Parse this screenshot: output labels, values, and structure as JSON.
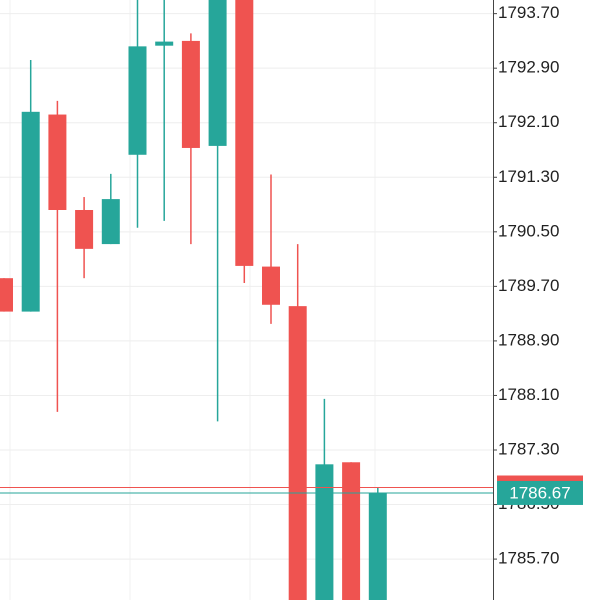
{
  "chart_data": {
    "type": "candlestick",
    "up_color": "#26a69a",
    "down_color": "#ef5350",
    "open": [
      1789.82,
      1789.33,
      1792.22,
      1790.82,
      1790.32,
      1791.63,
      1793.23,
      1793.3,
      1791.76,
      1794.1,
      1789.99,
      1789.41,
      1784.9,
      1787.12,
      1784.9
    ],
    "high": [
      1789.82,
      1793.02,
      1792.42,
      1791.01,
      1791.35,
      1794.1,
      1794.1,
      1793.41,
      1794.1,
      1794.1,
      1791.34,
      1790.32,
      1788.05,
      1787.12,
      1786.75
    ],
    "low": [
      1789.33,
      1789.33,
      1787.86,
      1789.82,
      1790.32,
      1790.56,
      1790.66,
      1790.32,
      1787.72,
      1789.75,
      1789.15,
      1784.9,
      1784.9,
      1784.9,
      1784.9
    ],
    "close": [
      1789.33,
      1792.26,
      1790.82,
      1790.25,
      1790.98,
      1793.22,
      1793.29,
      1791.73,
      1794.1,
      1790.0,
      1789.43,
      1784.9,
      1787.09,
      1784.9,
      1786.67
    ],
    "ylim": [
      1785.1,
      1793.9
    ],
    "yticks": [
      {
        "value": 1793.7,
        "label": "1793.70"
      },
      {
        "value": 1792.9,
        "label": "1792.90"
      },
      {
        "value": 1792.1,
        "label": "1792.10"
      },
      {
        "value": 1791.3,
        "label": "1791.30"
      },
      {
        "value": 1790.5,
        "label": "1790.50"
      },
      {
        "value": 1789.7,
        "label": "1789.70"
      },
      {
        "value": 1788.9,
        "label": "1788.90"
      },
      {
        "value": 1788.1,
        "label": "1788.10"
      },
      {
        "value": 1787.3,
        "label": "1787.30"
      },
      {
        "value": 1786.5,
        "label": "1786.50"
      },
      {
        "value": 1785.7,
        "label": "1785.70"
      }
    ],
    "grid": true,
    "price_lines": [
      {
        "value": 1786.75,
        "color": "#ef5350"
      },
      {
        "value": 1786.67,
        "color": "#26a69a"
      }
    ]
  }
}
